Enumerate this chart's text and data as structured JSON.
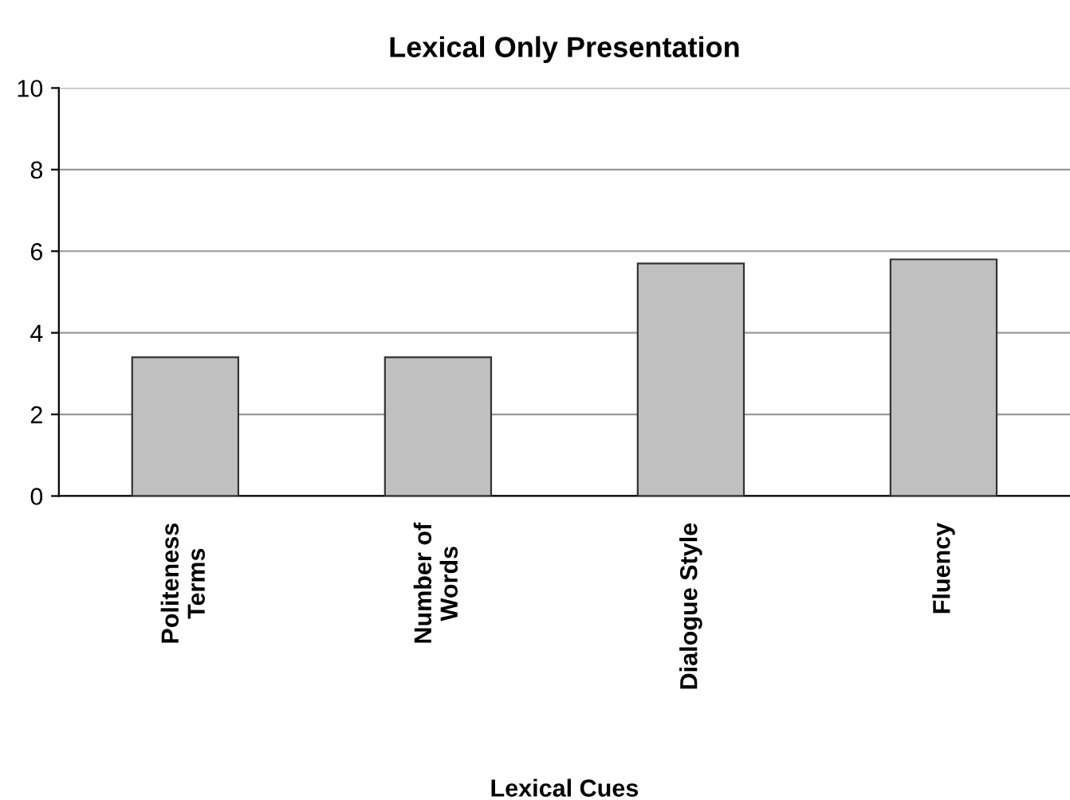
{
  "chart_data": {
    "type": "bar",
    "title": "Lexical Only Presentation",
    "xlabel": "Lexical Cues",
    "categories": [
      "Politeness\nTerms",
      "Number of\nWords",
      "Dialogue Style",
      "Fluency"
    ],
    "values": [
      3.4,
      3.4,
      5.7,
      5.8
    ],
    "color": "#c0c0c0",
    "ylim": [
      0,
      10
    ],
    "yticks": [
      0,
      2,
      4,
      6,
      8,
      10
    ],
    "grid": "y"
  }
}
